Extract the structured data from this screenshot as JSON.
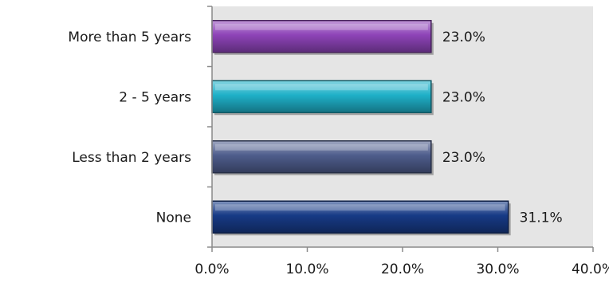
{
  "chart_data": {
    "type": "bar",
    "orientation": "horizontal",
    "categories": [
      "More than 5 years",
      "2 - 5 years",
      "Less than 2 years",
      "None"
    ],
    "values": [
      23.0,
      23.0,
      23.0,
      31.1
    ],
    "value_labels": [
      "23.0%",
      "23.0%",
      "23.0%",
      "31.1%"
    ],
    "bar_colors": [
      "#8e44b8",
      "#1fb0c8",
      "#4e5d8c",
      "#173a86"
    ],
    "xlim": [
      0,
      40
    ],
    "x_ticks": [
      0,
      10,
      20,
      30,
      40
    ],
    "x_tick_labels": [
      "0.0%",
      "10.0%",
      "20.0%",
      "30.0%",
      "40.0%"
    ],
    "grid": false,
    "plot_background": "#e5e5e5",
    "legend": "none"
  }
}
